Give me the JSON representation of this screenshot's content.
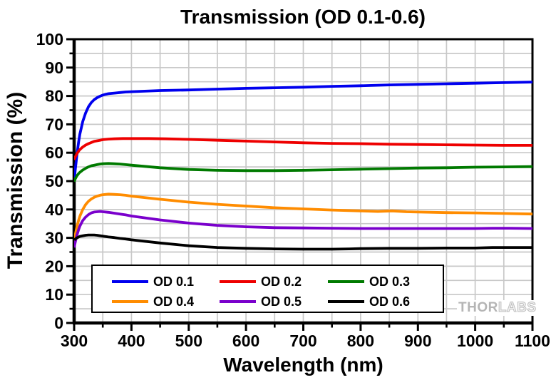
{
  "watermark": {
    "left": "THOR",
    "right": "LABS"
  },
  "chart_data": {
    "type": "line",
    "title": "Transmission (OD 0.1-0.6)",
    "xlabel": "Wavelength (nm)",
    "ylabel": "Transmission (%)",
    "xlim": [
      300,
      1100
    ],
    "ylim": [
      0,
      100
    ],
    "x_ticks": [
      300,
      400,
      500,
      600,
      700,
      800,
      900,
      1000,
      1100
    ],
    "y_ticks": [
      0,
      10,
      20,
      30,
      40,
      50,
      60,
      70,
      80,
      90,
      100
    ],
    "x_minor_step": 50,
    "y_minor_step": 5,
    "grid": true,
    "grid_color": "#c8c8c8",
    "axis_color": "#000000",
    "legend_position": "bottom-inside",
    "series": [
      {
        "name": "OD 0.1",
        "color": "#0000ee",
        "points": [
          [
            300,
            50
          ],
          [
            302,
            54
          ],
          [
            305,
            59.5
          ],
          [
            308,
            64
          ],
          [
            310,
            66.5
          ],
          [
            315,
            71
          ],
          [
            320,
            74
          ],
          [
            325,
            76.2
          ],
          [
            330,
            77.7
          ],
          [
            335,
            78.7
          ],
          [
            340,
            79.4
          ],
          [
            345,
            79.9
          ],
          [
            350,
            80.3
          ],
          [
            355,
            80.6
          ],
          [
            360,
            80.8
          ],
          [
            370,
            81
          ],
          [
            380,
            81.2
          ],
          [
            390,
            81.4
          ],
          [
            400,
            81.5
          ],
          [
            450,
            81.9
          ],
          [
            500,
            82.1
          ],
          [
            550,
            82.4
          ],
          [
            600,
            82.7
          ],
          [
            650,
            82.9
          ],
          [
            700,
            83.1
          ],
          [
            750,
            83.4
          ],
          [
            800,
            83.6
          ],
          [
            850,
            83.9
          ],
          [
            900,
            84.1
          ],
          [
            950,
            84.3
          ],
          [
            1000,
            84.5
          ],
          [
            1050,
            84.7
          ],
          [
            1100,
            84.9
          ]
        ]
      },
      {
        "name": "OD 0.2",
        "color": "#ee0000",
        "points": [
          [
            300,
            57.5
          ],
          [
            302,
            58.5
          ],
          [
            305,
            59.7
          ],
          [
            308,
            60.6
          ],
          [
            310,
            61.1
          ],
          [
            315,
            62
          ],
          [
            320,
            62.7
          ],
          [
            325,
            63.2
          ],
          [
            330,
            63.6
          ],
          [
            335,
            64
          ],
          [
            340,
            64.2
          ],
          [
            345,
            64.4
          ],
          [
            350,
            64.6
          ],
          [
            360,
            64.8
          ],
          [
            370,
            64.9
          ],
          [
            385,
            65
          ],
          [
            400,
            65
          ],
          [
            430,
            65
          ],
          [
            460,
            64.9
          ],
          [
            500,
            64.7
          ],
          [
            550,
            64.4
          ],
          [
            600,
            64.1
          ],
          [
            650,
            63.8
          ],
          [
            700,
            63.5
          ],
          [
            750,
            63.3
          ],
          [
            800,
            63.2
          ],
          [
            850,
            63
          ],
          [
            900,
            62.9
          ],
          [
            950,
            62.8
          ],
          [
            1000,
            62.7
          ],
          [
            1050,
            62.6
          ],
          [
            1100,
            62.6
          ]
        ]
      },
      {
        "name": "OD 0.3",
        "color": "#007a00",
        "points": [
          [
            300,
            49.8
          ],
          [
            302,
            50.8
          ],
          [
            305,
            51.9
          ],
          [
            308,
            52.7
          ],
          [
            310,
            53.1
          ],
          [
            315,
            53.9
          ],
          [
            320,
            54.5
          ],
          [
            325,
            55
          ],
          [
            330,
            55.4
          ],
          [
            335,
            55.6
          ],
          [
            340,
            55.8
          ],
          [
            345,
            56
          ],
          [
            350,
            56.1
          ],
          [
            360,
            56.2
          ],
          [
            370,
            56.1
          ],
          [
            380,
            56
          ],
          [
            390,
            55.8
          ],
          [
            400,
            55.6
          ],
          [
            450,
            54.7
          ],
          [
            500,
            54.1
          ],
          [
            550,
            53.8
          ],
          [
            600,
            53.7
          ],
          [
            650,
            53.7
          ],
          [
            700,
            53.8
          ],
          [
            750,
            54
          ],
          [
            800,
            54.2
          ],
          [
            850,
            54.4
          ],
          [
            900,
            54.6
          ],
          [
            950,
            54.7
          ],
          [
            1000,
            54.9
          ],
          [
            1050,
            55
          ],
          [
            1100,
            55.1
          ]
        ]
      },
      {
        "name": "OD 0.4",
        "color": "#ff8c00",
        "points": [
          [
            300,
            28.8
          ],
          [
            302,
            31
          ],
          [
            305,
            34
          ],
          [
            308,
            36.3
          ],
          [
            310,
            37.6
          ],
          [
            315,
            40
          ],
          [
            320,
            41.7
          ],
          [
            325,
            42.9
          ],
          [
            330,
            43.7
          ],
          [
            335,
            44.3
          ],
          [
            340,
            44.7
          ],
          [
            345,
            45
          ],
          [
            350,
            45.2
          ],
          [
            360,
            45.4
          ],
          [
            370,
            45.3
          ],
          [
            380,
            45.2
          ],
          [
            390,
            45
          ],
          [
            400,
            44.7
          ],
          [
            450,
            43.6
          ],
          [
            500,
            42.6
          ],
          [
            550,
            41.8
          ],
          [
            600,
            41.2
          ],
          [
            650,
            40.6
          ],
          [
            700,
            40.2
          ],
          [
            750,
            39.8
          ],
          [
            800,
            39.5
          ],
          [
            830,
            39.3
          ],
          [
            855,
            39.5
          ],
          [
            880,
            39.2
          ],
          [
            900,
            39.1
          ],
          [
            950,
            38.9
          ],
          [
            1000,
            38.8
          ],
          [
            1050,
            38.6
          ],
          [
            1100,
            38.4
          ]
        ]
      },
      {
        "name": "OD 0.5",
        "color": "#7a00cc",
        "points": [
          [
            300,
            26.6
          ],
          [
            302,
            28.5
          ],
          [
            305,
            31
          ],
          [
            308,
            33
          ],
          [
            310,
            34.1
          ],
          [
            315,
            36.1
          ],
          [
            320,
            37.3
          ],
          [
            325,
            38.2
          ],
          [
            330,
            38.8
          ],
          [
            335,
            39.1
          ],
          [
            340,
            39.2
          ],
          [
            345,
            39.3
          ],
          [
            350,
            39.2
          ],
          [
            360,
            39
          ],
          [
            370,
            38.7
          ],
          [
            380,
            38.4
          ],
          [
            390,
            38.1
          ],
          [
            400,
            37.7
          ],
          [
            450,
            36.3
          ],
          [
            500,
            35.2
          ],
          [
            550,
            34.4
          ],
          [
            600,
            33.9
          ],
          [
            650,
            33.6
          ],
          [
            700,
            33.5
          ],
          [
            750,
            33.4
          ],
          [
            800,
            33.3
          ],
          [
            850,
            33.3
          ],
          [
            900,
            33.3
          ],
          [
            950,
            33.3
          ],
          [
            1000,
            33.3
          ],
          [
            1030,
            33.4
          ],
          [
            1060,
            33.4
          ],
          [
            1100,
            33.3
          ]
        ]
      },
      {
        "name": "OD 0.6",
        "color": "#000000",
        "points": [
          [
            300,
            29.2
          ],
          [
            302,
            29.6
          ],
          [
            305,
            30
          ],
          [
            308,
            30.3
          ],
          [
            310,
            30.5
          ],
          [
            315,
            30.7
          ],
          [
            320,
            30.9
          ],
          [
            325,
            31
          ],
          [
            330,
            31
          ],
          [
            335,
            31
          ],
          [
            340,
            30.9
          ],
          [
            350,
            30.6
          ],
          [
            360,
            30.3
          ],
          [
            370,
            30.1
          ],
          [
            380,
            29.8
          ],
          [
            390,
            29.6
          ],
          [
            400,
            29.3
          ],
          [
            450,
            28.2
          ],
          [
            500,
            27.2
          ],
          [
            550,
            26.6
          ],
          [
            600,
            26.3
          ],
          [
            650,
            26.1
          ],
          [
            700,
            26
          ],
          [
            750,
            26
          ],
          [
            780,
            26.1
          ],
          [
            800,
            26.2
          ],
          [
            850,
            26.3
          ],
          [
            900,
            26.3
          ],
          [
            950,
            26.4
          ],
          [
            1000,
            26.4
          ],
          [
            1030,
            26.6
          ],
          [
            1060,
            26.6
          ],
          [
            1100,
            26.6
          ]
        ]
      }
    ]
  }
}
